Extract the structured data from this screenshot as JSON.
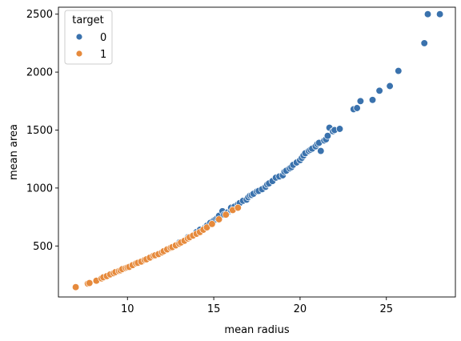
{
  "chart_data": {
    "type": "scatter",
    "title": "",
    "xlabel": "mean radius",
    "ylabel": "mean area",
    "xlim": [
      6.0,
      29.0
    ],
    "ylim": [
      60,
      2560
    ],
    "xticks": [
      10,
      15,
      20,
      25
    ],
    "yticks": [
      500,
      1000,
      1500,
      2000,
      2500
    ],
    "grid": false,
    "legend": {
      "title": "target",
      "placement": "top-left"
    },
    "colors": {
      "0": "#3a72ad",
      "1": "#e68a3c"
    },
    "series": [
      {
        "name": "0",
        "x": [
          13.0,
          13.5,
          14.0,
          14.2,
          14.5,
          14.6,
          14.8,
          15.0,
          15.1,
          15.2,
          15.3,
          15.5,
          15.6,
          15.8,
          16.0,
          16.0,
          16.2,
          16.4,
          16.5,
          16.7,
          16.9,
          17.0,
          17.1,
          17.2,
          17.3,
          17.5,
          17.6,
          17.8,
          18.0,
          18.1,
          18.2,
          18.4,
          18.6,
          18.8,
          19.0,
          19.1,
          19.2,
          19.4,
          19.5,
          19.6,
          19.8,
          20.0,
          20.1,
          20.2,
          20.3,
          20.5,
          20.6,
          20.7,
          20.9,
          21.0,
          21.1,
          21.2,
          21.4,
          21.5,
          21.6,
          21.7,
          21.9,
          22.0,
          22.3,
          23.1,
          23.3,
          23.5,
          24.2,
          24.6,
          25.2,
          25.7,
          27.2,
          27.4,
          28.1
        ],
        "y": [
          530,
          575,
          620,
          640,
          660,
          675,
          700,
          720,
          730,
          740,
          760,
          800,
          770,
          790,
          810,
          830,
          840,
          860,
          870,
          890,
          900,
          920,
          935,
          940,
          950,
          970,
          975,
          990,
          1010,
          1030,
          1040,
          1060,
          1090,
          1100,
          1110,
          1140,
          1150,
          1170,
          1180,
          1200,
          1220,
          1240,
          1260,
          1280,
          1300,
          1320,
          1330,
          1340,
          1360,
          1380,
          1390,
          1320,
          1410,
          1420,
          1450,
          1520,
          1490,
          1500,
          1510,
          1680,
          1690,
          1750,
          1760,
          1840,
          1880,
          2010,
          2250,
          2500,
          2500
        ]
      },
      {
        "name": "1",
        "x": [
          7.0,
          7.7,
          7.8,
          8.2,
          8.5,
          8.6,
          8.8,
          9.0,
          9.2,
          9.3,
          9.5,
          9.6,
          9.7,
          9.9,
          10.0,
          10.1,
          10.3,
          10.5,
          10.6,
          10.8,
          11.0,
          11.1,
          11.3,
          11.5,
          11.6,
          11.8,
          12.0,
          12.1,
          12.3,
          12.5,
          12.6,
          12.8,
          13.0,
          13.1,
          13.3,
          13.5,
          13.6,
          13.8,
          14.0,
          14.2,
          14.4,
          14.6,
          14.9,
          15.3,
          15.7,
          16.1,
          16.4
        ],
        "y": [
          145,
          175,
          180,
          200,
          220,
          230,
          240,
          255,
          265,
          275,
          285,
          290,
          300,
          310,
          315,
          320,
          335,
          350,
          355,
          365,
          380,
          385,
          400,
          415,
          420,
          430,
          445,
          455,
          470,
          485,
          490,
          505,
          520,
          530,
          545,
          565,
          575,
          590,
          605,
          620,
          640,
          660,
          690,
          730,
          770,
          810,
          830
        ]
      }
    ]
  }
}
